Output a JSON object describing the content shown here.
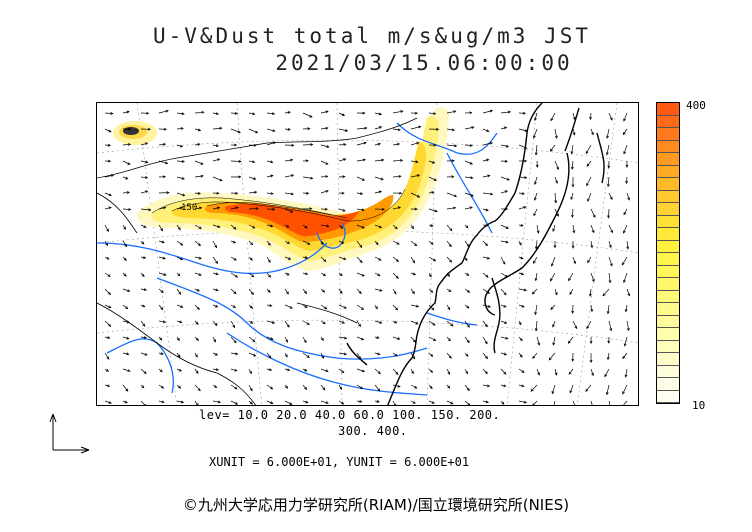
{
  "title_line1": "U-V&Dust total m/s&ug/m3 JST",
  "title_line2": "2021/03/15.06:00:00",
  "colorbar": {
    "max_label": "400",
    "min_label": "10",
    "colors_top_to_bottom": [
      "#ff5a14",
      "#ff6a18",
      "#ff7a1c",
      "#ff8a20",
      "#ff9a22",
      "#ffaa26",
      "#ffba2a",
      "#ffc82e",
      "#ffd432",
      "#ffe036",
      "#ffea3a",
      "#fff040",
      "#fff44c",
      "#fff65a",
      "#fff86a",
      "#fff97a",
      "#fffa8c",
      "#fffb9c",
      "#fffcac",
      "#fffdbc",
      "#fffdcc",
      "#fffedc",
      "#fffee6",
      "#fffff0"
    ]
  },
  "map": {
    "contour_label": "150",
    "dust_colors": {
      "heavy": "#ff5000",
      "high": "#ff9a00",
      "mid": "#ffd832",
      "low": "#fff07a",
      "light": "#fff8c0"
    }
  },
  "levels_line1": "lev= 10.0 20.0 40.0 60.0 100. 150. 200.",
  "levels_line2": "300. 400.",
  "units": "XUNIT = 6.000E+01, YUNIT = 6.000E+01",
  "credit": "©九州大学応用力学研究所(RIAM)/国立環境研究所(NIES)"
}
